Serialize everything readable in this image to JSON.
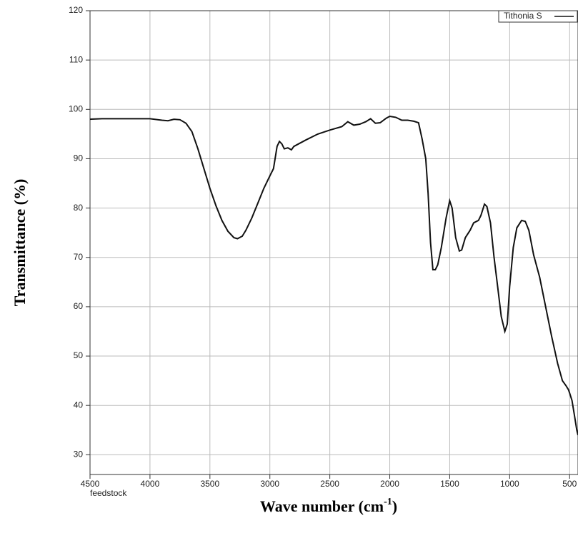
{
  "chart_data": {
    "type": "line",
    "ylabel": "Transmittance (%)",
    "xlabel": {
      "text": "Wave number (cm",
      "sup": "-1",
      "tail": ")"
    },
    "note": "feedstock",
    "x": [
      4500,
      4400,
      4200,
      4000,
      3900,
      3850,
      3800,
      3750,
      3700,
      3650,
      3600,
      3550,
      3500,
      3450,
      3400,
      3350,
      3300,
      3270,
      3230,
      3200,
      3150,
      3100,
      3050,
      3000,
      2970,
      2940,
      2920,
      2900,
      2880,
      2850,
      2820,
      2800,
      2700,
      2600,
      2500,
      2400,
      2350,
      2300,
      2250,
      2200,
      2160,
      2120,
      2080,
      2030,
      2000,
      1950,
      1900,
      1850,
      1800,
      1760,
      1730,
      1700,
      1680,
      1660,
      1640,
      1620,
      1600,
      1570,
      1530,
      1500,
      1480,
      1450,
      1420,
      1400,
      1370,
      1330,
      1300,
      1260,
      1240,
      1210,
      1190,
      1160,
      1130,
      1100,
      1070,
      1040,
      1020,
      1000,
      970,
      940,
      900,
      870,
      840,
      800,
      750,
      700,
      650,
      600,
      560,
      530,
      510,
      500,
      480,
      460,
      440,
      430
    ],
    "series": [
      {
        "name": "Tithonia S",
        "color": "#111111",
        "values": [
          98,
          98.1,
          98.1,
          98.1,
          97.8,
          97.7,
          98,
          97.9,
          97.2,
          95.5,
          92,
          88,
          84,
          80.5,
          77.5,
          75.3,
          74,
          73.8,
          74.3,
          75.5,
          78,
          81,
          84,
          86.5,
          88,
          92.5,
          93.5,
          93,
          92,
          92.2,
          91.8,
          92.5,
          93.8,
          95,
          95.8,
          96.5,
          97.5,
          96.8,
          97,
          97.5,
          98.1,
          97.2,
          97.3,
          98.2,
          98.6,
          98.4,
          97.8,
          97.8,
          97.6,
          97.3,
          94,
          90,
          83,
          73,
          67.5,
          67.5,
          68.5,
          72,
          78,
          81.5,
          80,
          74,
          71.3,
          71.5,
          74,
          75.5,
          77,
          77.5,
          78.5,
          80.8,
          80.3,
          77,
          70,
          64,
          58,
          55,
          56.5,
          64,
          72,
          76,
          77.5,
          77.3,
          75.5,
          70.5,
          66,
          60,
          54,
          48.5,
          45,
          44,
          43.2,
          42.5,
          41,
          38,
          35,
          34
        ]
      }
    ],
    "xlim": [
      4500,
      430
    ],
    "ylim": [
      26,
      120
    ],
    "xticks": [
      4500,
      4000,
      3500,
      3000,
      2500,
      2000,
      1500,
      1000,
      500
    ],
    "yticks": [
      30,
      40,
      50,
      60,
      70,
      80,
      90,
      100,
      110,
      120
    ],
    "grid": true,
    "legend": "top-right"
  }
}
